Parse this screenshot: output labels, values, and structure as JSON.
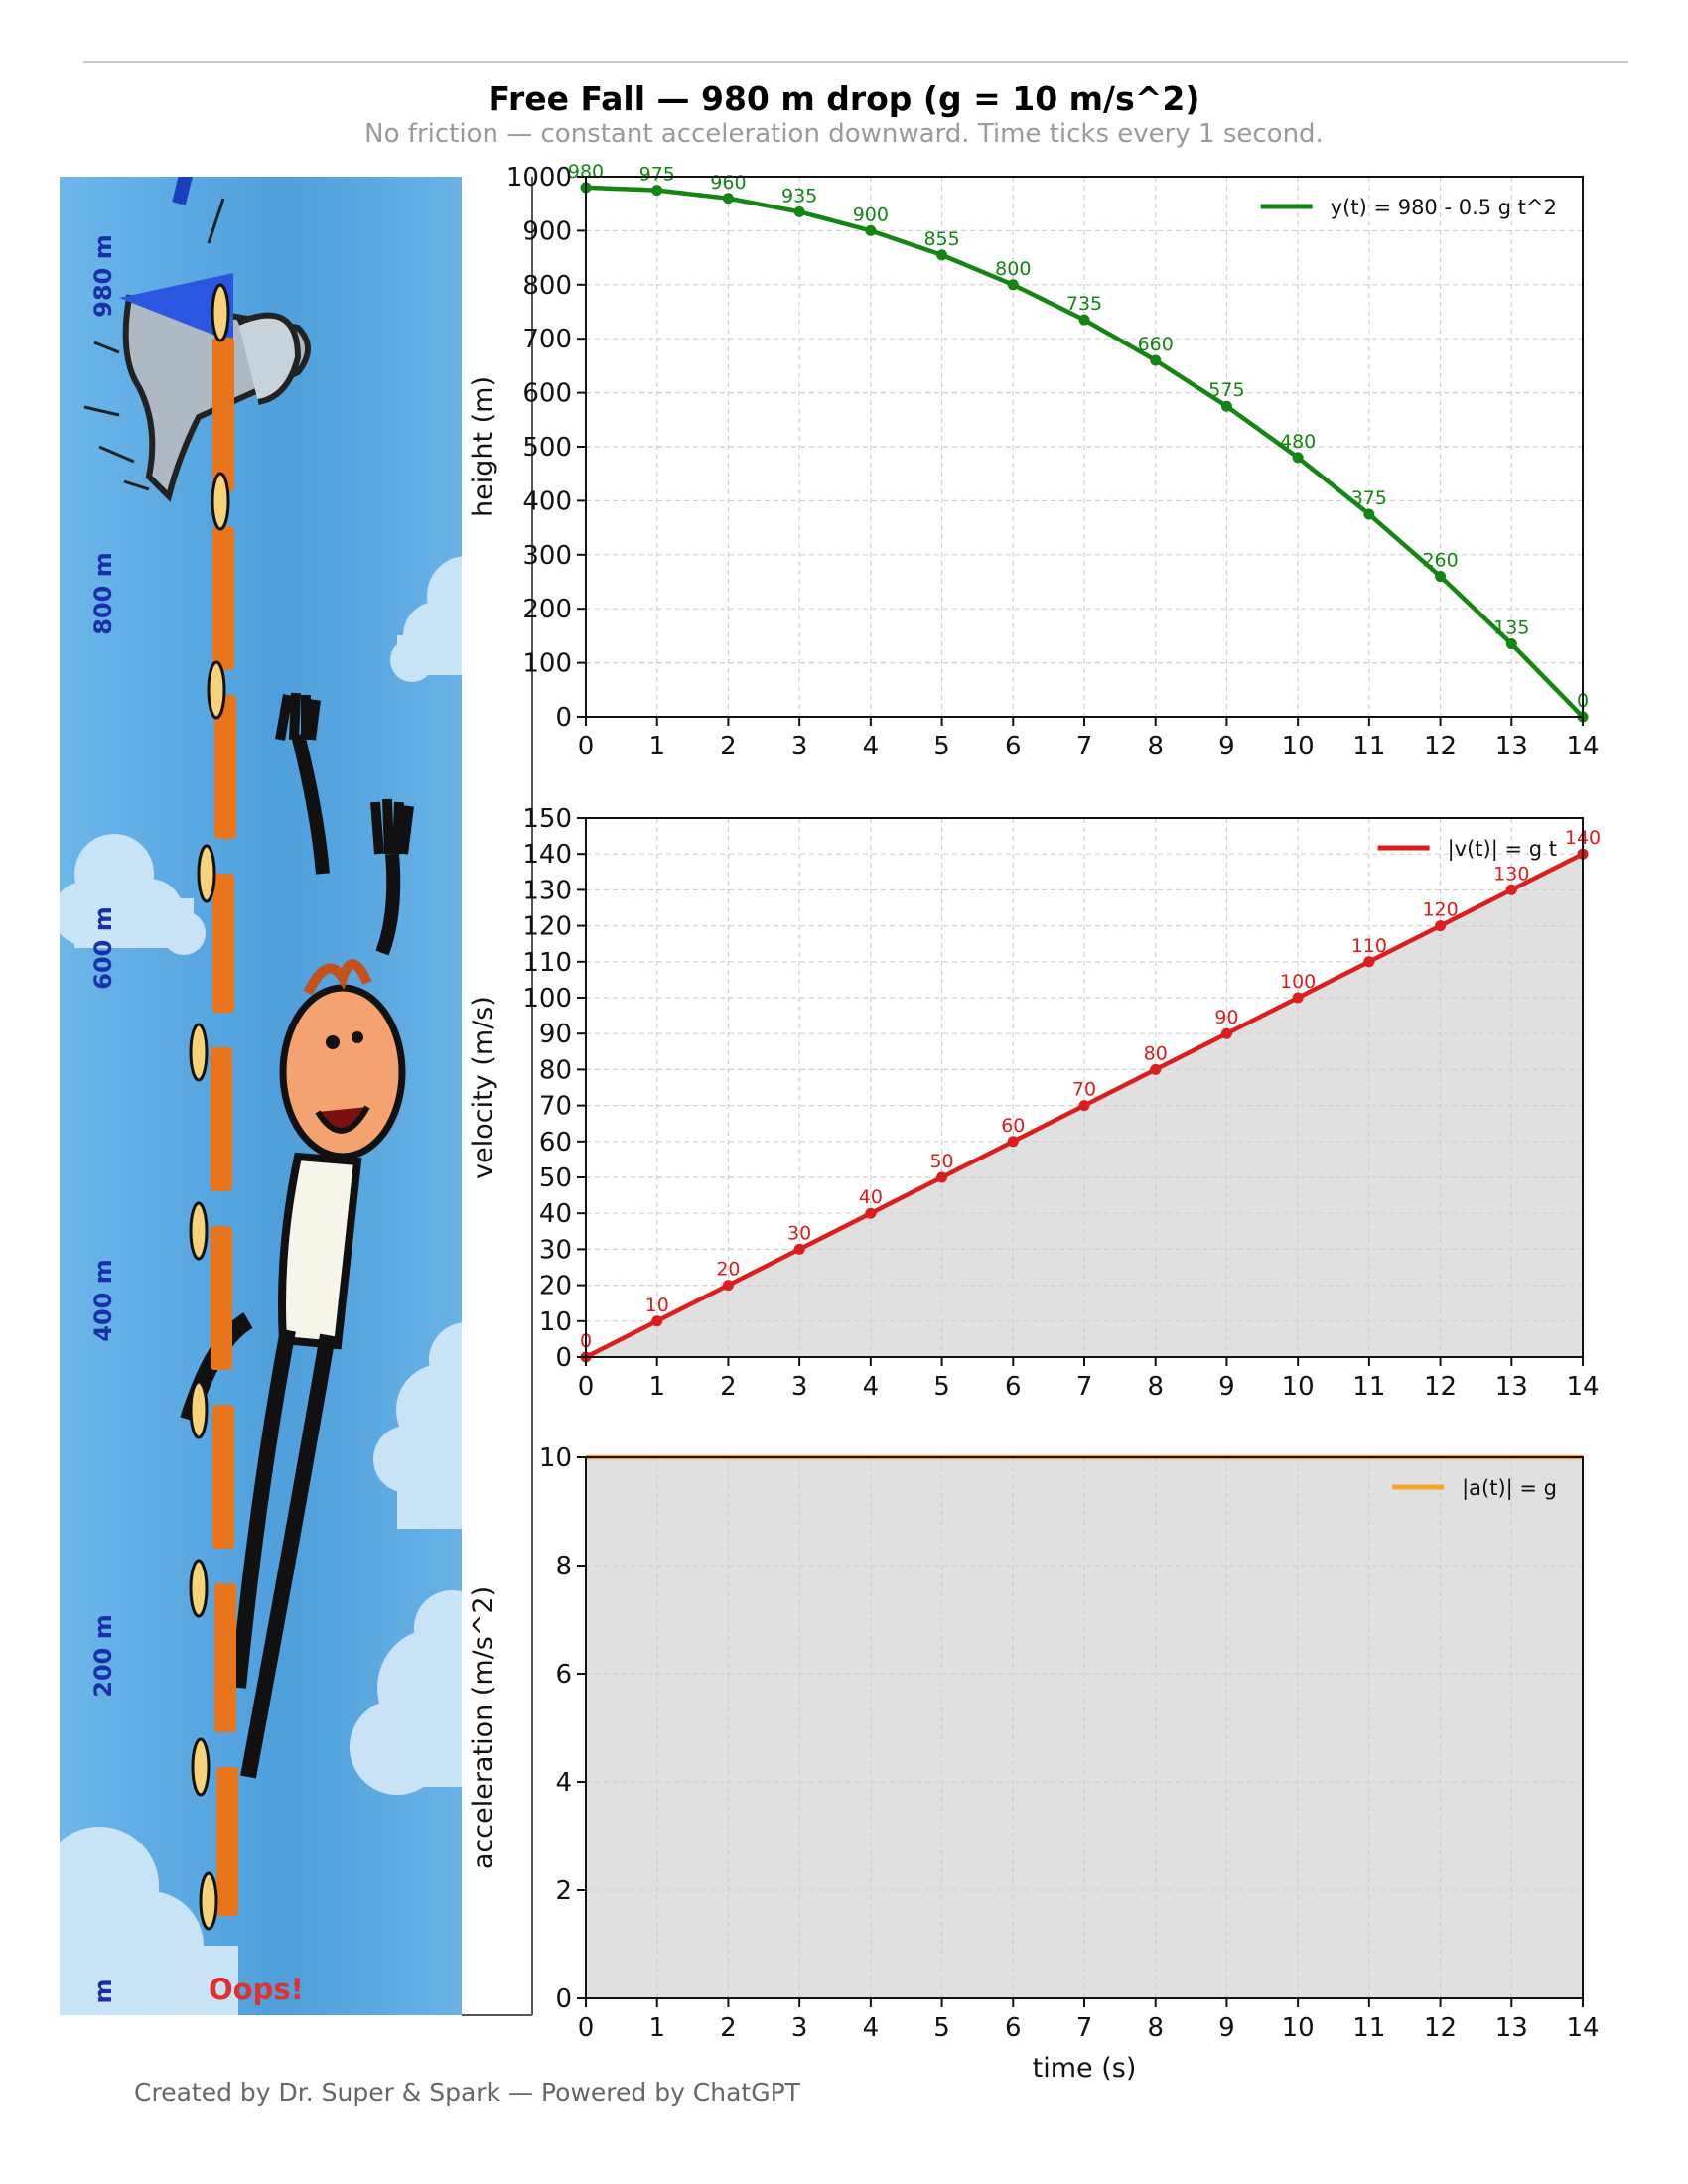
{
  "title": "Free Fall — 980 m drop (g = 10 m/s^2)",
  "subtitle": "No friction — constant acceleration downward. Time ticks every 1 second.",
  "footer": "Created by Dr. Super & Spark — Powered by ChatGPT",
  "illustration": {
    "height_labels": [
      "980 m",
      "800 m",
      "600 m",
      "400 m",
      "200 m",
      "m"
    ],
    "oops_label": "Oops!",
    "colors": {
      "sky": "#5aa9e3",
      "chute": "#e8741c",
      "label": "#1a2fa8",
      "oops": "#e03030"
    }
  },
  "chart_data": [
    {
      "type": "line",
      "x": [
        0,
        1,
        2,
        3,
        4,
        5,
        6,
        7,
        8,
        9,
        10,
        11,
        12,
        13,
        14
      ],
      "series": [
        {
          "name": "y(t) = 980 - 0.5 g t^2",
          "color": "#138513",
          "values": [
            980,
            975,
            960,
            935,
            900,
            855,
            800,
            735,
            660,
            575,
            480,
            375,
            260,
            135,
            0
          ]
        }
      ],
      "xlabel": "",
      "ylabel": "height (m)",
      "xlim": [
        0,
        14
      ],
      "ylim": [
        0,
        1000
      ],
      "xticks": [
        "0",
        "1",
        "2",
        "3",
        "4",
        "5",
        "6",
        "7",
        "8",
        "9",
        "10",
        "11",
        "12",
        "13",
        "14"
      ],
      "yticks": [
        "0",
        "100",
        "200",
        "300",
        "400",
        "500",
        "600",
        "700",
        "800",
        "900",
        "1000"
      ],
      "data_labels": [
        "980",
        "975",
        "960",
        "935",
        "900",
        "855",
        "800",
        "735",
        "660",
        "575",
        "480",
        "375",
        "260",
        "135",
        "0"
      ],
      "grid": true,
      "legend": "top-right"
    },
    {
      "type": "area",
      "x": [
        0,
        1,
        2,
        3,
        4,
        5,
        6,
        7,
        8,
        9,
        10,
        11,
        12,
        13,
        14
      ],
      "series": [
        {
          "name": "|v(t)| = g t",
          "color": "#dd1c1c",
          "values": [
            0,
            10,
            20,
            30,
            40,
            50,
            60,
            70,
            80,
            90,
            100,
            110,
            120,
            130,
            140
          ]
        }
      ],
      "xlabel": "",
      "ylabel": "velocity (m/s)",
      "xlim": [
        0,
        14
      ],
      "ylim": [
        0,
        150
      ],
      "xticks": [
        "0",
        "1",
        "2",
        "3",
        "4",
        "5",
        "6",
        "7",
        "8",
        "9",
        "10",
        "11",
        "12",
        "13",
        "14"
      ],
      "yticks": [
        "0",
        "10",
        "20",
        "30",
        "40",
        "50",
        "60",
        "70",
        "80",
        "90",
        "100",
        "110",
        "120",
        "130",
        "140",
        "150"
      ],
      "data_labels": [
        "0",
        "10",
        "20",
        "30",
        "40",
        "50",
        "60",
        "70",
        "80",
        "90",
        "100",
        "110",
        "120",
        "130",
        "140"
      ],
      "grid": true,
      "legend": "top-right"
    },
    {
      "type": "area",
      "x": [
        0,
        14
      ],
      "series": [
        {
          "name": "|a(t)| = g",
          "color": "#f5a623",
          "values": [
            10,
            10
          ]
        }
      ],
      "xlabel": "time (s)",
      "ylabel": "acceleration (m/s^2)",
      "xlim": [
        0,
        14
      ],
      "ylim": [
        0,
        10
      ],
      "xticks": [
        "0",
        "1",
        "2",
        "3",
        "4",
        "5",
        "6",
        "7",
        "8",
        "9",
        "10",
        "11",
        "12",
        "13",
        "14"
      ],
      "yticks": [
        "0",
        "2",
        "4",
        "6",
        "8",
        "10"
      ],
      "grid": true,
      "legend": "top-right"
    }
  ]
}
